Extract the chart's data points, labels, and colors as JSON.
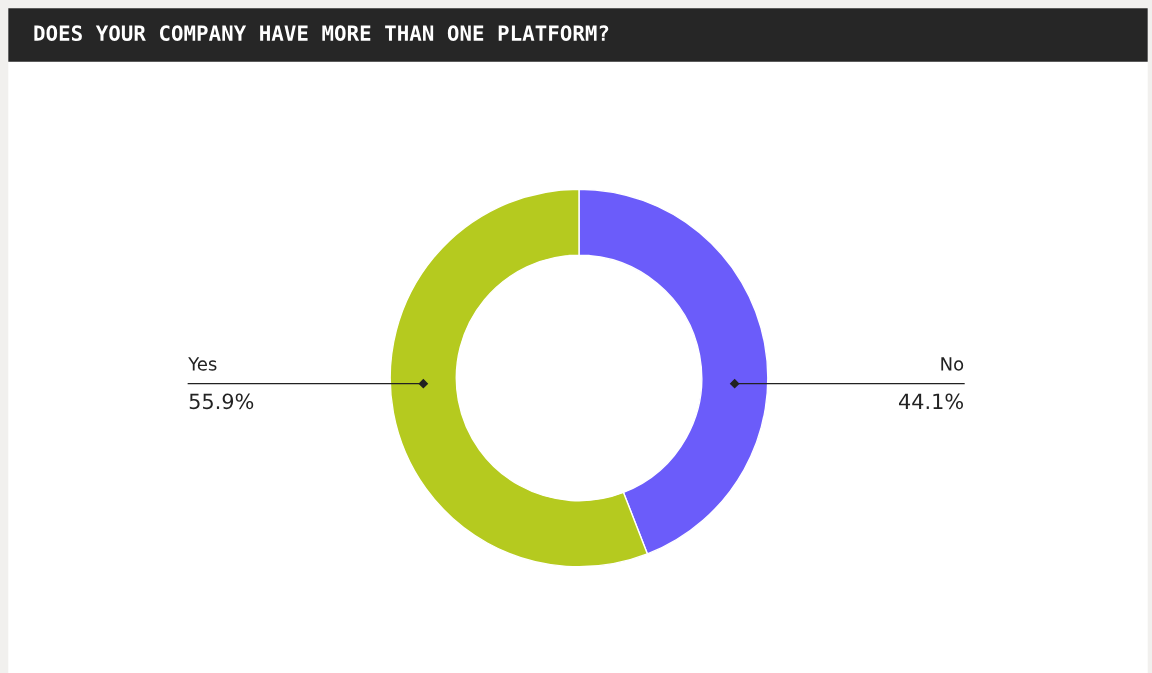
{
  "chart_data": {
    "type": "donut",
    "title": "DOES YOUR COMPANY HAVE MORE THAN ONE PLATFORM?",
    "categories": [
      "No",
      "Yes"
    ],
    "values": [
      44.1,
      55.9
    ],
    "colors": [
      "#6b5cfa",
      "#b5ca1f"
    ],
    "value_labels": [
      "44.1%",
      "55.9%"
    ]
  }
}
